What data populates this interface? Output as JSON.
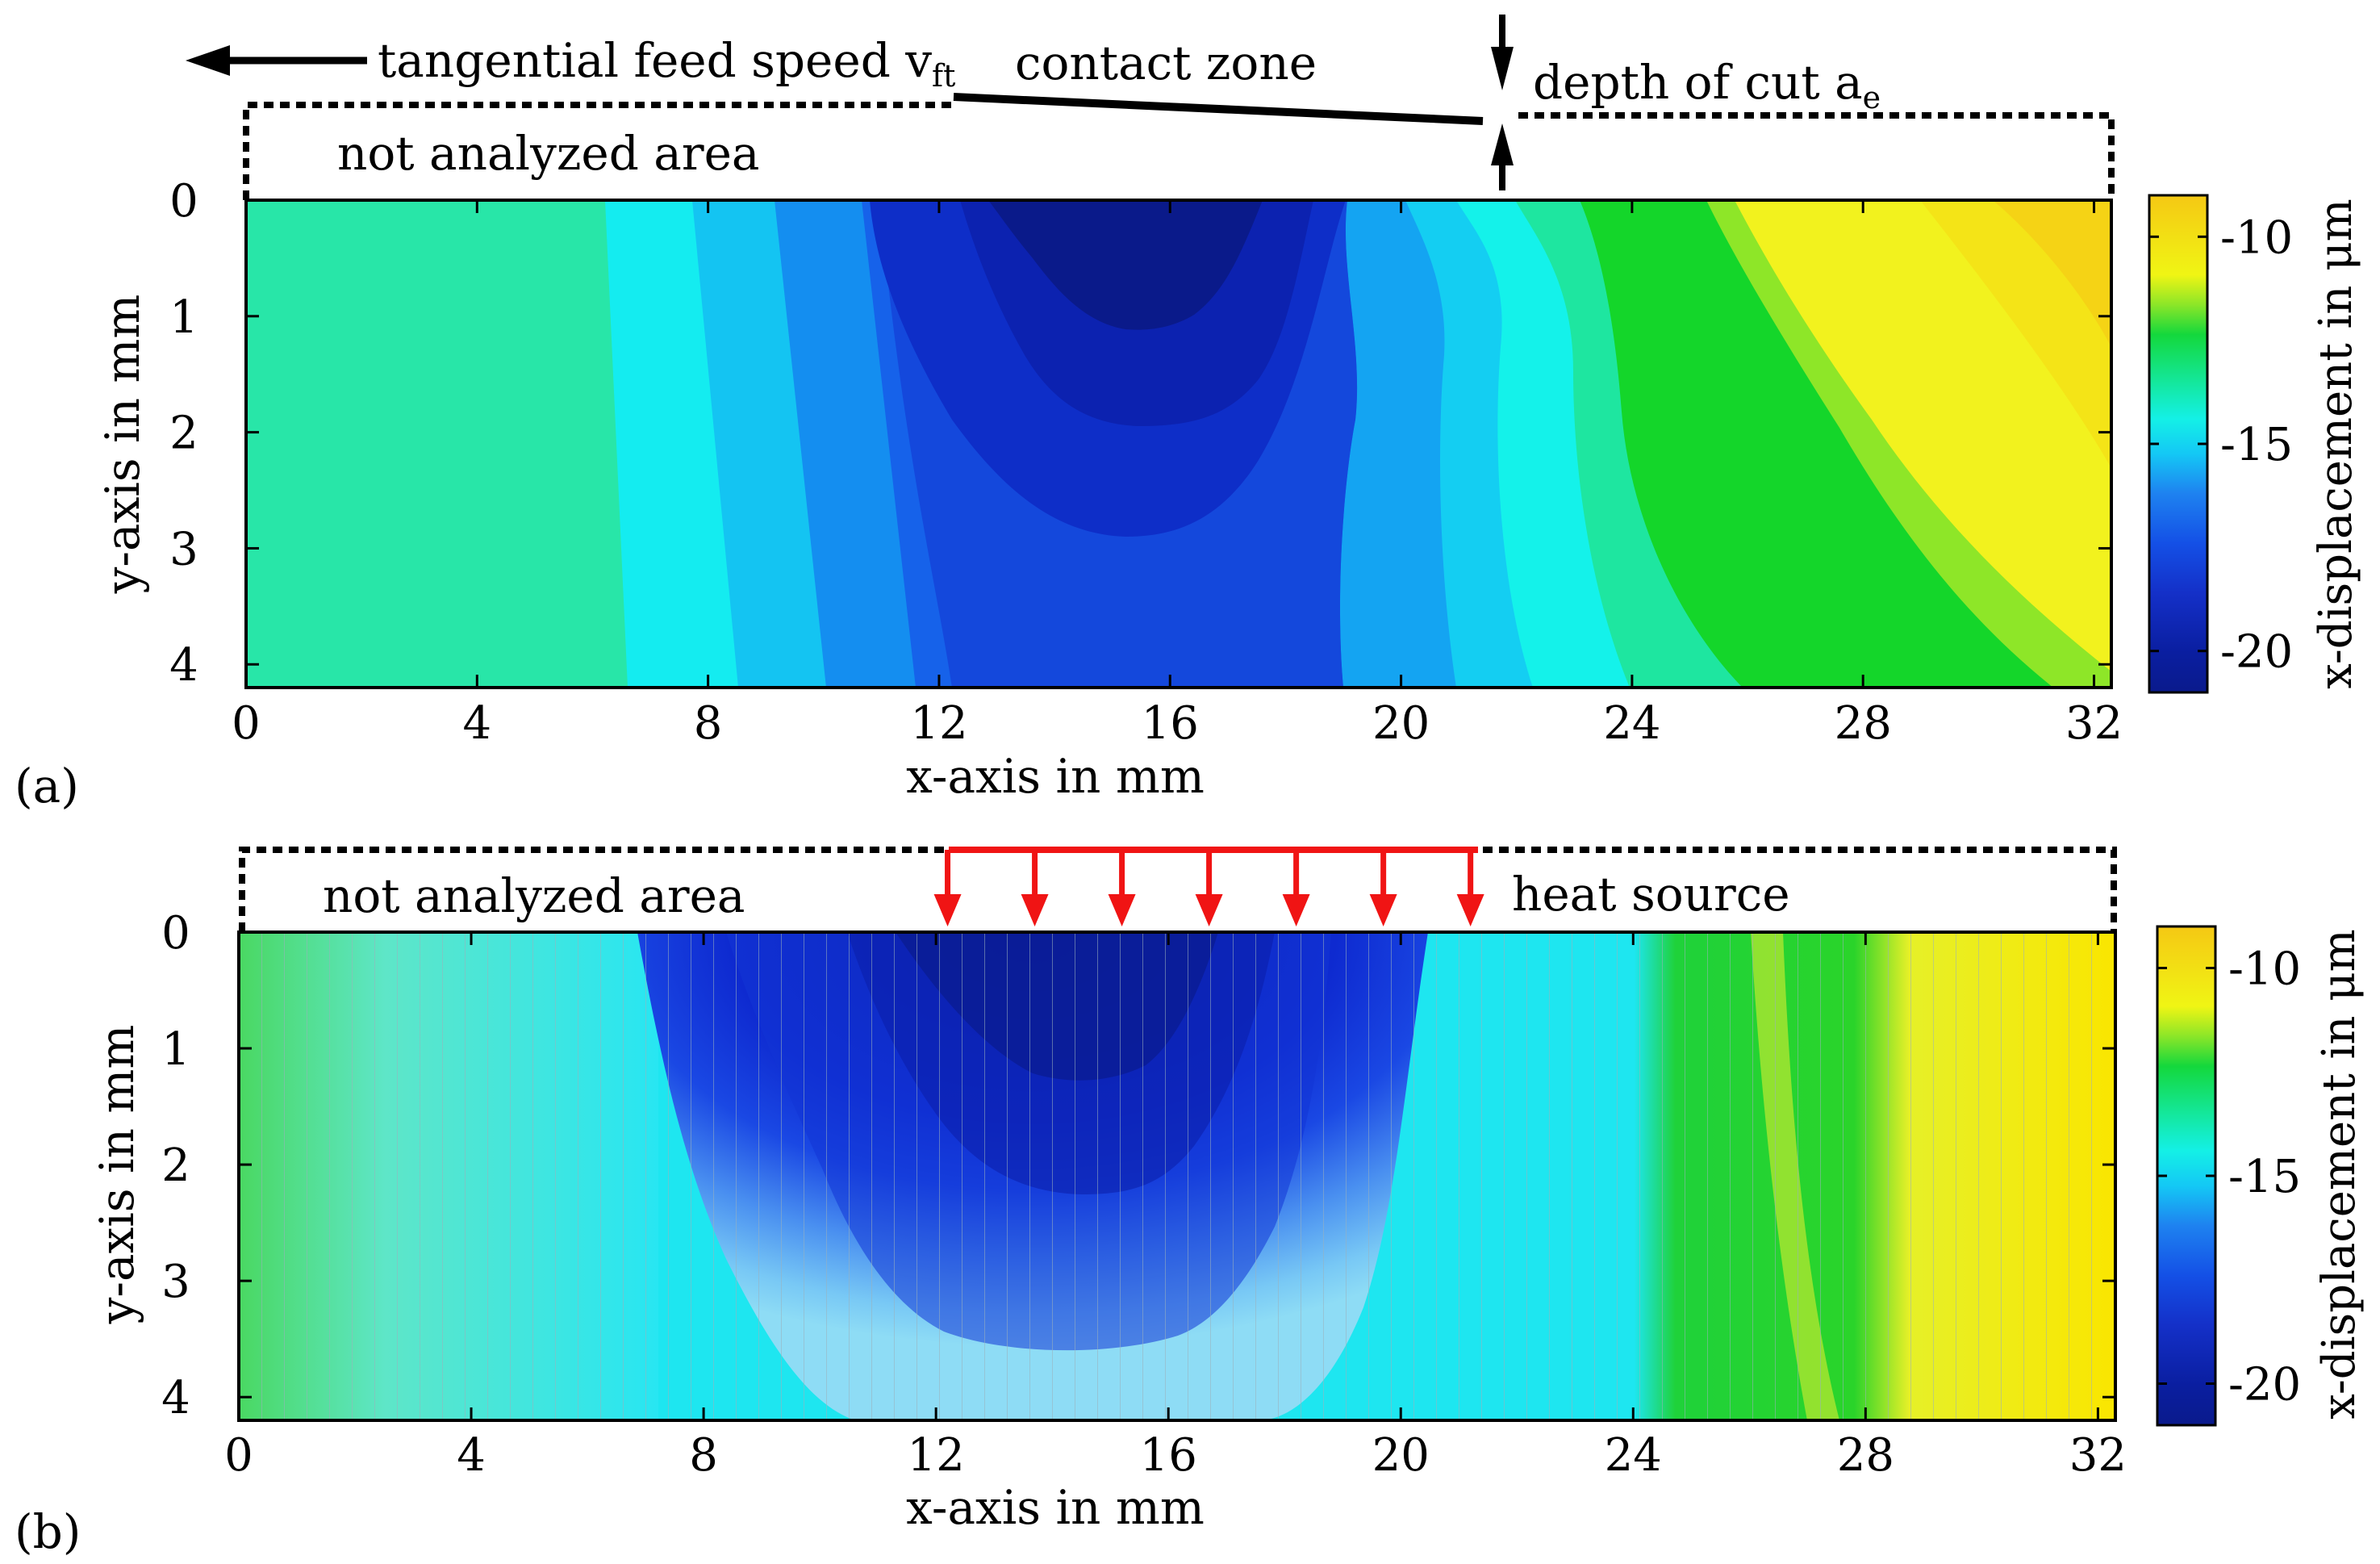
{
  "chart_data": [
    {
      "type": "heatmap",
      "panel_label": "(a)",
      "xlabel": "x-axis in mm",
      "ylabel": "y-axis in mm",
      "xlim": [
        0,
        32.3
      ],
      "ylim": [
        4.2,
        0
      ],
      "xticks": [
        0,
        4,
        8,
        12,
        16,
        20,
        24,
        28,
        32
      ],
      "yticks": [
        0,
        1,
        2,
        3,
        4
      ],
      "colorbar_label": "x-displacement in μm",
      "colorbar_ticks": [
        -10,
        -15,
        -20
      ],
      "colorbar_range": [
        -21,
        -9
      ],
      "annotations": {
        "feed": "tangential feed speed v",
        "feed_sub": "ft",
        "contact": "contact zone",
        "depth": "depth of cut a",
        "depth_sub": "e",
        "not_analyzed": "not analyzed area"
      },
      "contour_bands": [
        {
          "level": -14.5,
          "x_at_y0": 6.5,
          "x_at_y4": 6.9
        },
        {
          "level": -15.5,
          "x_at_y0": 8.0,
          "x_at_y4": 8.8
        },
        {
          "level": -16.5,
          "x_at_y0": 9.4,
          "x_at_y4": 10.3
        },
        {
          "level": -17.5,
          "x_at_y0": 10.9,
          "x_at_y4": 11.8
        },
        {
          "level": -19.0,
          "center_x": 15.7,
          "half_width": 3.1,
          "depth_y": 2.9
        },
        {
          "level": -20.0,
          "center_x": 15.7,
          "half_width": 2.2,
          "depth_y": 1.95
        },
        {
          "level": -21.0,
          "center_x": 15.7,
          "half_width": 1.5,
          "depth_y": 1.0
        },
        {
          "level": -16.5,
          "x_at_y0": 20.5,
          "x_at_y4": 20.2
        },
        {
          "level": -15.5,
          "x_at_y0": 21.5,
          "x_at_y4": 22.4
        },
        {
          "level": -14.5,
          "x_at_y0": 22.4,
          "x_at_y4": 23.9
        },
        {
          "level": -13.5,
          "x_at_y0": 23.5,
          "x_at_y4": 25.5
        },
        {
          "level": -12.5,
          "x_at_y0": 25.7,
          "x_at_y4": 31.0
        },
        {
          "level": -11.5,
          "x_at_y0": 27.2,
          "x_at_y4": 32.2
        }
      ]
    },
    {
      "type": "heatmap",
      "panel_label": "(b)",
      "xlabel": "x-axis in mm",
      "ylabel": "y-axis in mm",
      "xlim": [
        0,
        32.3
      ],
      "ylim": [
        4.2,
        0
      ],
      "xticks": [
        0,
        4,
        8,
        12,
        16,
        20,
        24,
        28,
        32
      ],
      "yticks": [
        0,
        1,
        2,
        3,
        4
      ],
      "colorbar_label": "x-displacement in μm",
      "colorbar_ticks": [
        -10,
        -15,
        -20
      ],
      "colorbar_range": [
        -21,
        -9
      ],
      "annotations": {
        "heat_source": "heat source",
        "not_analyzed": "not analyzed area"
      },
      "heat_source_arrows_x_mm": [
        12.2,
        13.7,
        15.2,
        16.7,
        18.2,
        19.7,
        21.2
      ],
      "contour_bands": [
        {
          "level": -15.0,
          "region": "x 0 to 6.8, light green to cyan"
        },
        {
          "level": -17.5,
          "center_x": 15.3,
          "half_width": 6.7,
          "depth_y": 4.2
        },
        {
          "level": -19.5,
          "center_x": 15.3,
          "half_width": 3.8,
          "depth_y": 3.5
        },
        {
          "level": -20.5,
          "center_x": 15.3,
          "half_width": 2.6,
          "depth_y": 2.0
        },
        {
          "level": -15.0,
          "region": "x 20.5 to 23.7 cyan"
        },
        {
          "level": -13.0,
          "region": "x 23.7 to 26.3 green"
        },
        {
          "level": -10.5,
          "region": "x 28 to 32.3 yellow"
        }
      ]
    }
  ]
}
